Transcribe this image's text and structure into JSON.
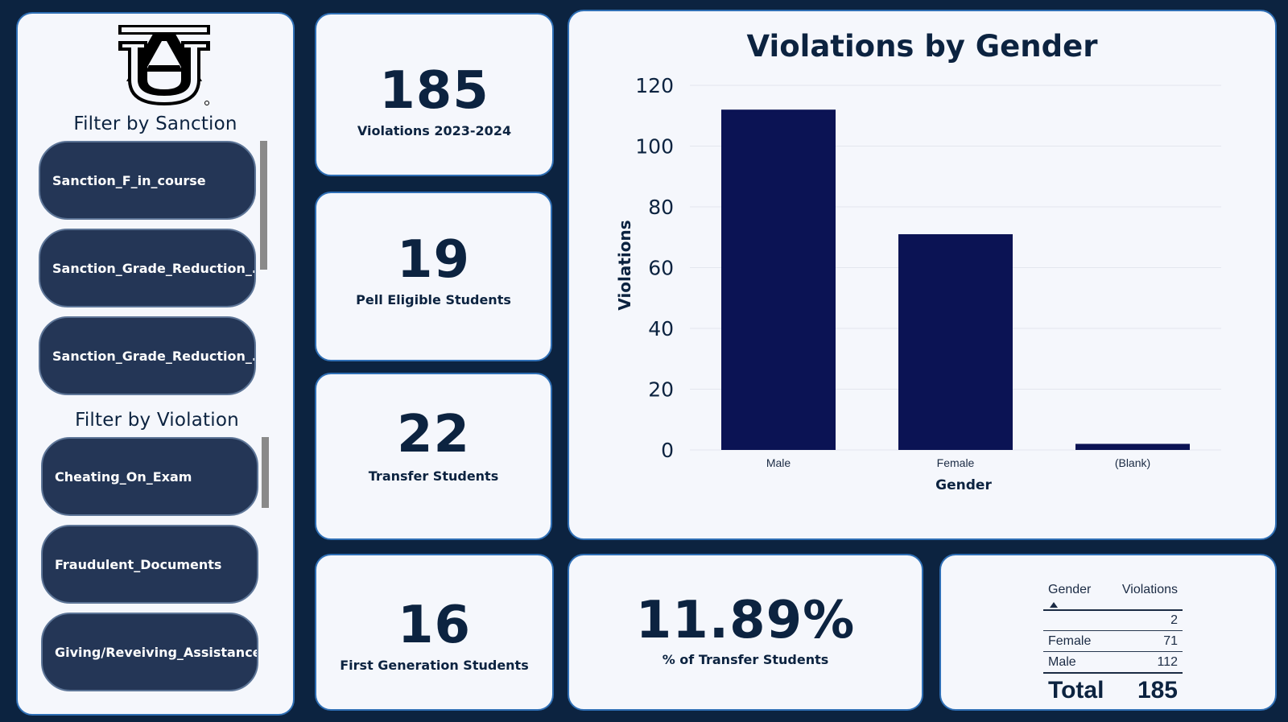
{
  "sidebar": {
    "logo_text": "AU",
    "sanction_filter_title": "Filter by Sanction",
    "sanction_items": [
      "Sanction_F_in_course",
      "Sanction_Grade_Reduction_...",
      "Sanction_Grade_Reduction_..."
    ],
    "violation_filter_title": "Filter by Violation",
    "violation_items": [
      "Cheating_On_Exam",
      "Fraudulent_Documents",
      "Giving/Reveiving_Assistance..."
    ]
  },
  "kpis": {
    "violations": {
      "value": "185",
      "label": "Violations 2023-2024"
    },
    "pell": {
      "value": "19",
      "label": "Pell Eligible Students"
    },
    "transfer": {
      "value": "22",
      "label": "Transfer Students"
    },
    "first_gen": {
      "value": "16",
      "label": "First Generation Students"
    },
    "transfer_pct": {
      "value": "11.89%",
      "label": "% of Transfer Students"
    }
  },
  "chart_data": {
    "type": "bar",
    "title": "Violations by Gender",
    "categories": [
      "Male",
      "Female",
      "(Blank)"
    ],
    "values": [
      112,
      71,
      2
    ],
    "xlabel": "Gender",
    "ylabel": "Violations",
    "ylim": [
      0,
      120
    ],
    "yticks": [
      0,
      20,
      40,
      60,
      80,
      100,
      120
    ],
    "bar_color": "#0b1354",
    "grid": true
  },
  "table": {
    "headers": [
      "Gender",
      "Violations"
    ],
    "rows": [
      {
        "gender": "",
        "violations": "2"
      },
      {
        "gender": "Female",
        "violations": "71"
      },
      {
        "gender": "Male",
        "violations": "112"
      }
    ],
    "total_label": "Total",
    "total_value": "185"
  },
  "colors": {
    "background": "#0c2340",
    "card": "#f5f7fc",
    "card_border": "#2f6fb5",
    "slicer": "#243656",
    "text": "#0c2340"
  }
}
